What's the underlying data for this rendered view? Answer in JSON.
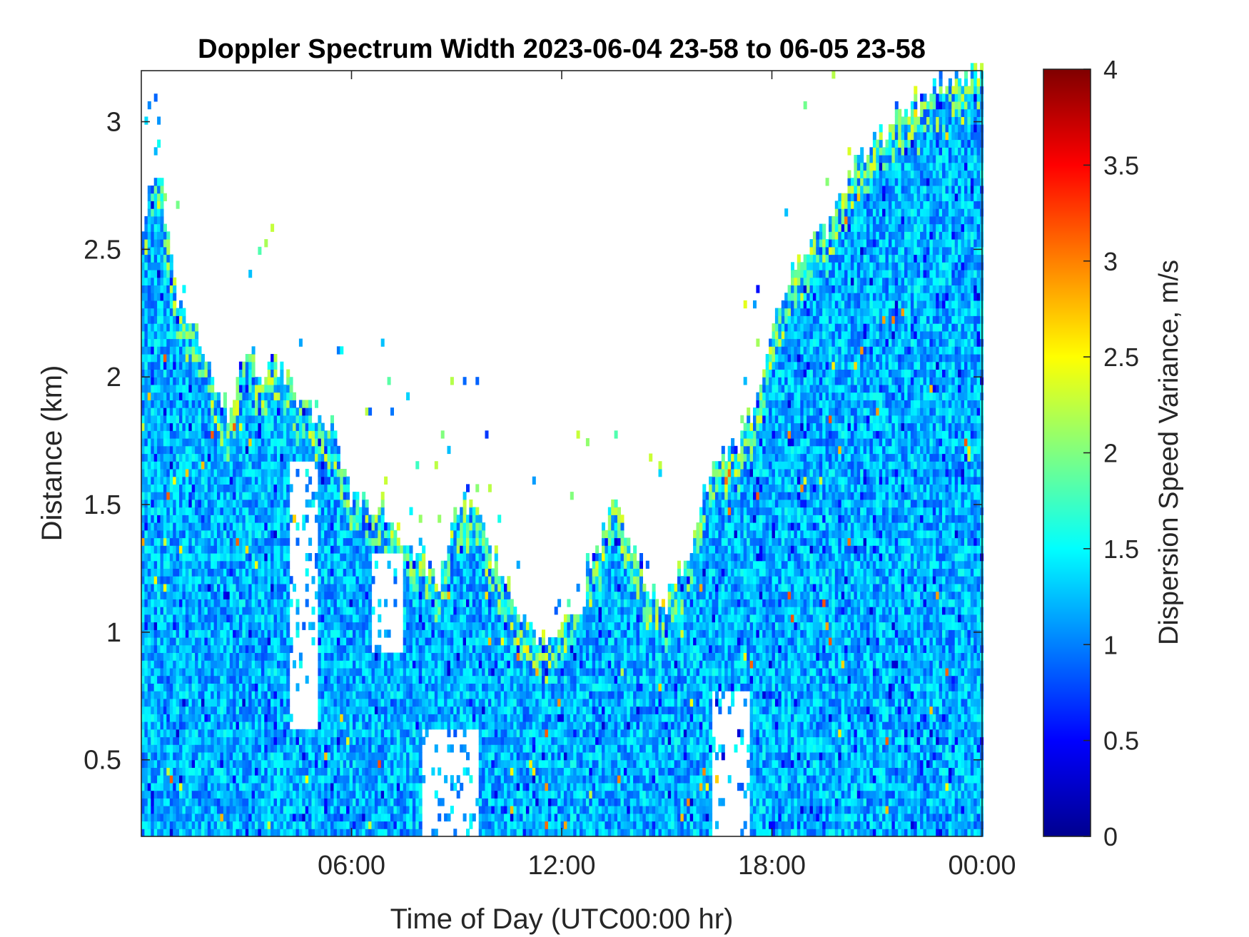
{
  "chart_data": {
    "type": "heatmap",
    "title": "Doppler Spectrum Width 2023-06-04 23-58 to 06-05 23-58",
    "xlabel": "Time of Day (UTC00:00 hr)",
    "ylabel": "Distance (km)",
    "xlim": [
      0,
      24
    ],
    "ylim": [
      0.2,
      3.2
    ],
    "x_ticks": [
      {
        "value": 6,
        "label": "06:00"
      },
      {
        "value": 12,
        "label": "12:00"
      },
      {
        "value": 18,
        "label": "18:00"
      },
      {
        "value": 24,
        "label": "00:00"
      }
    ],
    "y_ticks": [
      {
        "value": 0.5,
        "label": "0.5"
      },
      {
        "value": 1,
        "label": "1"
      },
      {
        "value": 1.5,
        "label": "1.5"
      },
      {
        "value": 2,
        "label": "2"
      },
      {
        "value": 2.5,
        "label": "2.5"
      },
      {
        "value": 3,
        "label": "3"
      }
    ],
    "colormap": "jet",
    "colorbar": {
      "label": "Dispersion Speed Variance, m/s",
      "range": [
        0,
        4
      ],
      "ticks": [
        "0",
        "0.5",
        "1",
        "1.5",
        "2",
        "2.5",
        "3",
        "3.5",
        "4"
      ],
      "colors": [
        "#00008f",
        "#0000ff",
        "#0080ff",
        "#00ffff",
        "#80ff80",
        "#ffff00",
        "#ff8000",
        "#ff0000",
        "#800000"
      ]
    },
    "typical_value_range": [
      0.8,
      1.6
    ],
    "data_top_envelope": {
      "x": [
        0,
        0.5,
        1.0,
        1.5,
        2.0,
        2.5,
        3.0,
        3.5,
        4.0,
        4.5,
        5.0,
        5.5,
        6.0,
        6.5,
        7.0,
        7.5,
        8.0,
        8.5,
        9.0,
        9.5,
        10.0,
        10.5,
        11.0,
        11.5,
        12.0,
        12.5,
        13.0,
        13.5,
        14.0,
        14.5,
        15.0,
        15.5,
        16.0,
        16.5,
        17.0,
        17.5,
        18.0,
        18.5,
        19.0,
        19.5,
        20.0,
        20.5,
        21.0,
        21.5,
        22.0,
        22.5,
        23.0,
        23.5,
        24.0
      ],
      "y": [
        2.6,
        2.8,
        2.3,
        2.15,
        2.0,
        1.85,
        2.1,
        2.0,
        2.05,
        1.85,
        1.85,
        1.8,
        1.5,
        1.5,
        1.45,
        1.35,
        1.3,
        1.2,
        1.5,
        1.5,
        1.3,
        1.15,
        1.0,
        0.95,
        1.0,
        1.2,
        1.3,
        1.5,
        1.35,
        1.15,
        1.1,
        1.25,
        1.5,
        1.65,
        1.7,
        1.9,
        2.2,
        2.4,
        2.5,
        2.55,
        2.7,
        2.85,
        2.9,
        3.0,
        3.05,
        3.1,
        3.15,
        3.18,
        3.2
      ]
    }
  }
}
